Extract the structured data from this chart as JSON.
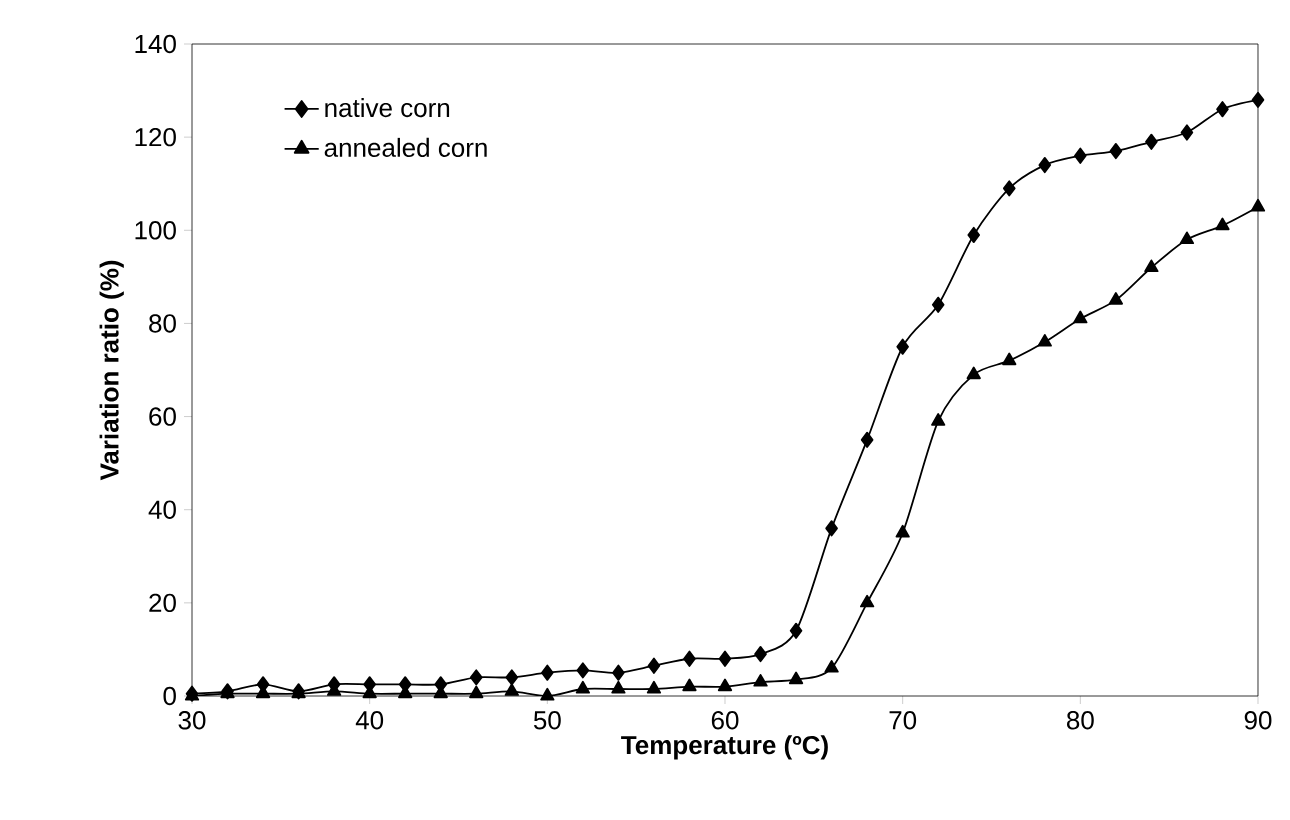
{
  "chart_data": {
    "type": "line",
    "xlabel": "Temperature (ºC)",
    "ylabel": "Variation ratio (%)",
    "x": [
      30,
      32,
      34,
      36,
      38,
      40,
      42,
      44,
      46,
      48,
      50,
      52,
      54,
      56,
      58,
      60,
      62,
      64,
      66,
      68,
      70,
      72,
      74,
      76,
      78,
      80,
      82,
      84,
      86,
      88,
      90
    ],
    "series": [
      {
        "name": "native corn",
        "color": "#000000",
        "marker": "diamond",
        "values": [
          0.5,
          1,
          2.5,
          1,
          2.5,
          2.5,
          2.5,
          2.5,
          4,
          4,
          5,
          5.5,
          5,
          6.5,
          8,
          8,
          9,
          14,
          36,
          55,
          75,
          84,
          99,
          109,
          114,
          116,
          117,
          119,
          121,
          126,
          128
        ]
      },
      {
        "name": "annealed corn",
        "color": "#000000",
        "marker": "triangle",
        "values": [
          0,
          0.5,
          0.5,
          0.5,
          1,
          0.5,
          0.5,
          0.5,
          0.5,
          1,
          0,
          1.5,
          1.5,
          1.5,
          2,
          2,
          3,
          3.5,
          6,
          20,
          35,
          59,
          69,
          72,
          76,
          81,
          85,
          92,
          98,
          101,
          105
        ]
      }
    ],
    "xlim": [
      30,
      90
    ],
    "ylim": [
      0,
      140
    ],
    "xticks": [
      30,
      40,
      50,
      60,
      70,
      80,
      90
    ],
    "yticks": [
      0,
      20,
      40,
      60,
      80,
      100,
      120,
      140
    ],
    "grid": false,
    "legend": "top left",
    "line_style": "solid"
  }
}
